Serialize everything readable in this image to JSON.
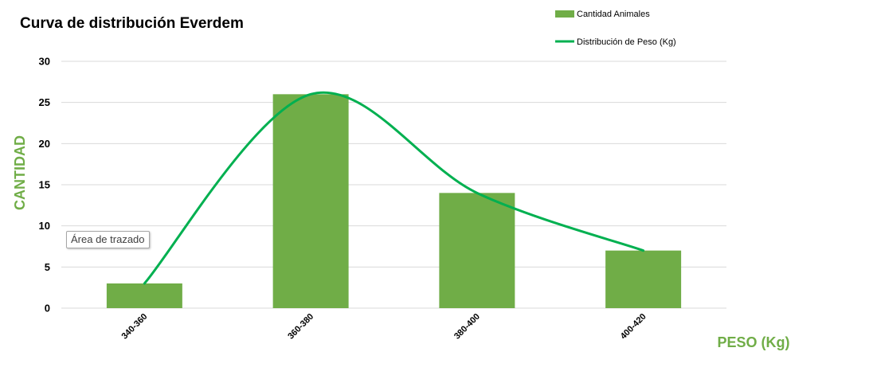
{
  "chart_data": {
    "type": "bar",
    "title": "Curva de distribución Everdem",
    "xlabel": "PESO (Kg)",
    "ylabel": "CANTIDAD",
    "categories": [
      "340-360",
      "360-380",
      "380-400",
      "400-420"
    ],
    "series": [
      {
        "name": "Cantidad Animales",
        "type": "bar",
        "values": [
          3,
          26,
          14,
          7
        ],
        "color": "#70AD47"
      },
      {
        "name": "Distribución de Peso (Kg)",
        "type": "line",
        "smooth": true,
        "values": [
          3,
          26,
          14,
          7
        ],
        "color": "#00B050"
      }
    ],
    "ylim": [
      0,
      30
    ],
    "yticks": [
      0,
      5,
      10,
      15,
      20,
      25,
      30
    ],
    "grid": true,
    "legend_position": "top-right",
    "axis_title_color": "#70AD47",
    "gridline_color": "#D9D9D9"
  },
  "tooltip": {
    "text": "Área de trazado"
  }
}
